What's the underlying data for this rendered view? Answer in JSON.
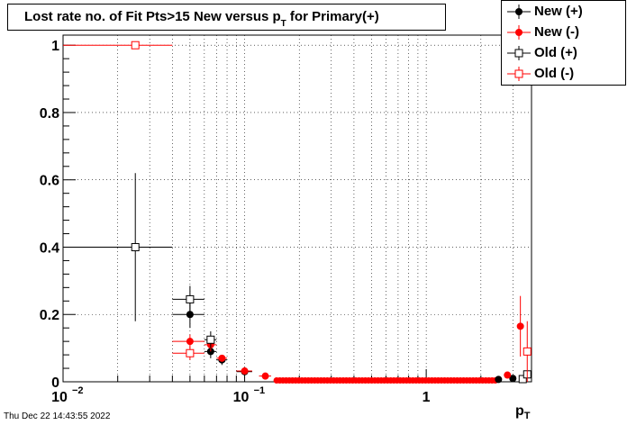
{
  "chart_data": {
    "type": "scatter",
    "title": "Lost rate no. of Fit Pts>15 New versus p",
    "title_sub": "T",
    "title_suffix": " for Primary(+)",
    "xlabel": "p",
    "xlabel_sub": "T",
    "ylabel": "",
    "x_scale": "log",
    "xlim": [
      0.01,
      3.8
    ],
    "ylim": [
      0,
      1.03
    ],
    "x_ticks": [
      {
        "value": 0.01,
        "base": "10",
        "exp": "−2"
      },
      {
        "value": 0.1,
        "base": "10",
        "exp": "−1"
      },
      {
        "value": 1,
        "base": "1",
        "exp": ""
      }
    ],
    "y_ticks": [
      "0",
      "0.2",
      "0.4",
      "0.6",
      "0.8",
      "1"
    ],
    "y_tick_values": [
      0,
      0.2,
      0.4,
      0.6,
      0.8,
      1
    ],
    "grid": true,
    "legend_position": "top-right",
    "series": [
      {
        "name": "New (+)",
        "marker": "filled-circle",
        "color": "#000000",
        "points": [
          {
            "x": 0.05,
            "y": 0.2,
            "xl": 0.04,
            "xh": 0.06,
            "yerr": 0.04
          },
          {
            "x": 0.065,
            "y": 0.09,
            "xl": 0.06,
            "xh": 0.07,
            "yerr": 0.02
          },
          {
            "x": 0.075,
            "y": 0.065,
            "xl": 0.07,
            "xh": 0.08,
            "yerr": 0.015
          },
          {
            "x": 0.1,
            "y": 0.03,
            "xl": 0.09,
            "xh": 0.11,
            "yerr": 0.005
          },
          {
            "x": 2.5,
            "y": 0.007,
            "xl": 2.4,
            "xh": 2.6,
            "yerr": 0.003
          },
          {
            "x": 3.0,
            "y": 0.01,
            "xl": 2.9,
            "xh": 3.1,
            "yerr": 0.004
          }
        ]
      },
      {
        "name": "New (-)",
        "marker": "filled-circle",
        "color": "#ff0000",
        "points": [
          {
            "x": 0.05,
            "y": 0.12,
            "xl": 0.04,
            "xh": 0.06,
            "yerr": 0.02
          },
          {
            "x": 0.065,
            "y": 0.11,
            "xl": 0.06,
            "xh": 0.07,
            "yerr": 0.02
          },
          {
            "x": 0.075,
            "y": 0.07,
            "xl": 0.07,
            "xh": 0.08,
            "yerr": 0.01
          },
          {
            "x": 0.1,
            "y": 0.032,
            "xl": 0.09,
            "xh": 0.11,
            "yerr": 0.004
          },
          {
            "x": 0.13,
            "y": 0.017,
            "xl": 0.12,
            "xh": 0.14,
            "yerr": 0.002
          },
          {
            "x": 2.8,
            "y": 0.02,
            "xl": 2.7,
            "xh": 2.9,
            "yerr": 0.006
          },
          {
            "x": 3.3,
            "y": 0.165,
            "xl": 3.2,
            "xh": 3.4,
            "yerr": 0.09
          }
        ]
      },
      {
        "name": "Old (+)",
        "marker": "open-square",
        "color": "#000000",
        "points": [
          {
            "x": 0.025,
            "y": 0.4,
            "xl": 0.01,
            "xh": 0.04,
            "yerr": 0.22
          },
          {
            "x": 0.05,
            "y": 0.245,
            "xl": 0.04,
            "xh": 0.06,
            "yerr": 0.04
          },
          {
            "x": 0.065,
            "y": 0.125,
            "xl": 0.06,
            "xh": 0.07,
            "yerr": 0.025
          },
          {
            "x": 3.4,
            "y": 0.008,
            "xl": 3.3,
            "xh": 3.5,
            "yerr": 0.004
          },
          {
            "x": 3.6,
            "y": 0.022,
            "xl": 3.5,
            "xh": 3.7,
            "yerr": 0.01
          }
        ]
      },
      {
        "name": "Old (-)",
        "marker": "open-square",
        "color": "#ff0000",
        "points": [
          {
            "x": 0.025,
            "y": 1.0,
            "xl": 0.01,
            "xh": 0.04,
            "yerr": 0
          },
          {
            "x": 0.05,
            "y": 0.085,
            "xl": 0.04,
            "xh": 0.06,
            "yerr": 0.02
          },
          {
            "x": 3.6,
            "y": 0.09,
            "xl": 3.5,
            "xh": 3.7,
            "yerr": 0.09
          }
        ]
      }
    ],
    "dense_band": {
      "color": "#ff0000",
      "x_from": 0.15,
      "x_to": 2.4,
      "y": 0.004
    }
  },
  "legend": {
    "items": [
      {
        "label": "New (+)",
        "marker": "filled-circle",
        "color": "#000000"
      },
      {
        "label": "New (-)",
        "marker": "filled-circle",
        "color": "#ff0000"
      },
      {
        "label": "Old (+)",
        "marker": "open-square",
        "color": "#000000"
      },
      {
        "label": "Old (-)",
        "marker": "open-square",
        "color": "#ff0000"
      }
    ]
  },
  "footer": {
    "timestamp": "Thu Dec 22 14:43:55 2022"
  }
}
